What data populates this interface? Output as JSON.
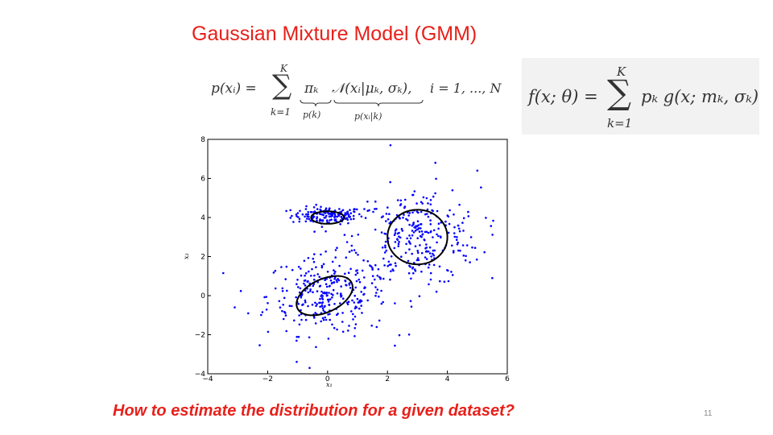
{
  "slide": {
    "title": "Gaussian Mixture Model (GMM)",
    "question": "How to estimate the distribution for a given dataset?",
    "page_number": "11"
  },
  "formula_left": {
    "lhs": "p(xᵢ) =",
    "sum_upper": "K",
    "sum_lower": "k=1",
    "term_pi": "πₖ",
    "term_pi_label": "p(k)",
    "term_normal": "𝒩(xᵢ|μₖ, σₖ),",
    "term_normal_label": "p(xᵢ|k)",
    "range": "i = 1, ..., N"
  },
  "formula_right": {
    "lhs": "f(x; θ) =",
    "sum_upper": "K",
    "sum_lower": "k=1",
    "rhs": "pₖ g(x; mₖ, σₖ)"
  },
  "chart_data": {
    "type": "scatter",
    "xlabel": "x₁",
    "ylabel": "x₂",
    "xlim": [
      -4,
      6
    ],
    "ylim": [
      -4,
      8
    ],
    "xticks": [
      "−4",
      "−2",
      "0",
      "2",
      "4",
      "6"
    ],
    "yticks": [
      "−4",
      "−2",
      "0",
      "2",
      "4",
      "6",
      "8"
    ],
    "x_tick_values": [
      -4,
      -2,
      0,
      2,
      4,
      6
    ],
    "y_tick_values": [
      -4,
      -2,
      0,
      2,
      4,
      6,
      8
    ],
    "grid": false,
    "point_color": "#0000ff",
    "clusters": [
      {
        "center": [
          0.0,
          4.1
        ],
        "spread": [
          0.6,
          0.22
        ],
        "count": 150
      },
      {
        "center": [
          0.0,
          0.0
        ],
        "spread": [
          1.0,
          1.0
        ],
        "count": 300
      },
      {
        "center": [
          3.0,
          3.0
        ],
        "spread": [
          1.05,
          1.25
        ],
        "count": 300
      }
    ],
    "outliers": [
      [
        2.1,
        7.7
      ],
      [
        -3.1,
        -0.6
      ],
      [
        -0.6,
        -3.7
      ],
      [
        5.0,
        6.4
      ],
      [
        3.6,
        6.8
      ]
    ],
    "ellipses": [
      {
        "center": [
          0.0,
          4.0
        ],
        "rx": 0.55,
        "ry": 0.32,
        "angle": 0
      },
      {
        "center": [
          -0.1,
          0.0
        ],
        "rx": 1.0,
        "ry": 0.85,
        "angle": 25
      },
      {
        "center": [
          3.0,
          3.0
        ],
        "rx": 1.0,
        "ry": 1.4,
        "angle": 0
      }
    ]
  }
}
